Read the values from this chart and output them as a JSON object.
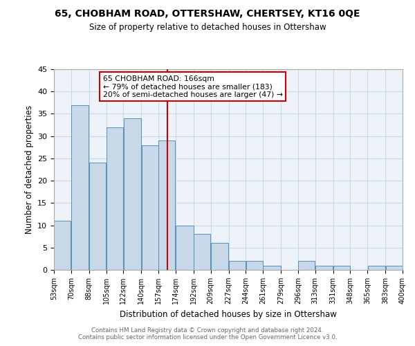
{
  "title1": "65, CHOBHAM ROAD, OTTERSHAW, CHERTSEY, KT16 0QE",
  "title2": "Size of property relative to detached houses in Ottershaw",
  "xlabel": "Distribution of detached houses by size in Ottershaw",
  "ylabel": "Number of detached properties",
  "footer1": "Contains HM Land Registry data © Crown copyright and database right 2024.",
  "footer2": "Contains public sector information licensed under the Open Government Licence v3.0.",
  "bin_labels": [
    "53sqm",
    "70sqm",
    "88sqm",
    "105sqm",
    "122sqm",
    "140sqm",
    "157sqm",
    "174sqm",
    "192sqm",
    "209sqm",
    "227sqm",
    "244sqm",
    "261sqm",
    "279sqm",
    "296sqm",
    "313sqm",
    "331sqm",
    "348sqm",
    "365sqm",
    "383sqm",
    "400sqm"
  ],
  "bar_values": [
    11,
    37,
    24,
    32,
    34,
    28,
    29,
    10,
    8,
    6,
    2,
    2,
    1,
    0,
    2,
    1,
    1,
    0,
    1,
    1
  ],
  "bar_color": "#c8d8e8",
  "bar_edge_color": "#5590bb",
  "grid_color": "#c8d8e8",
  "annotation_box_color": "#cc0000",
  "annotation_box_text": "65 CHOBHAM ROAD: 166sqm\n← 79% of detached houses are smaller (183)\n20% of semi-detached houses are larger (47) →",
  "ylim": [
    0,
    45
  ],
  "yticks": [
    0,
    5,
    10,
    15,
    20,
    25,
    30,
    35,
    40,
    45
  ],
  "bin_edges_sqm": [
    53,
    70,
    88,
    105,
    122,
    140,
    157,
    174,
    192,
    209,
    227,
    244,
    261,
    279,
    296,
    313,
    331,
    348,
    365,
    383,
    400
  ],
  "subject_sqm": 166,
  "background_color": "#ffffff",
  "ax_facecolor": "#edf3f8"
}
